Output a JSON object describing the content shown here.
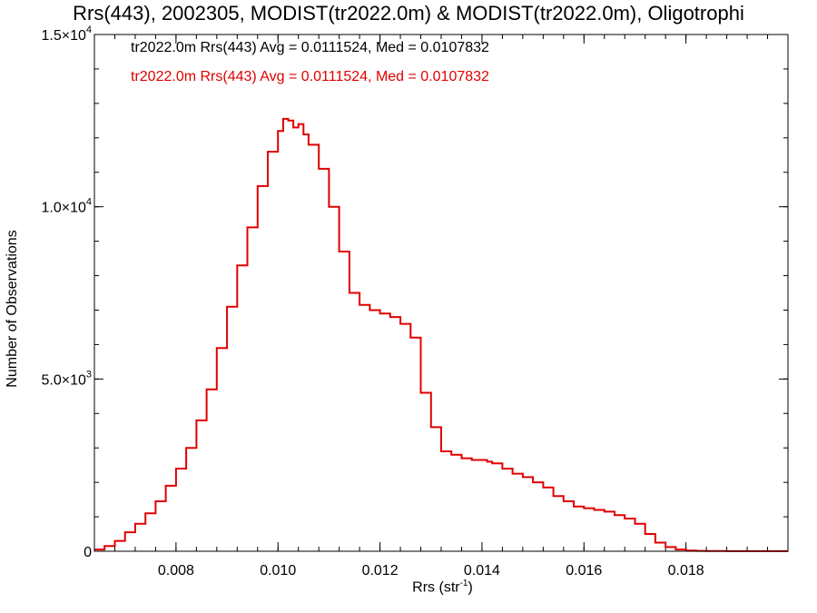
{
  "chart_data": {
    "type": "line",
    "title": "Rrs(443), 2002305, MODIST(tr2022.0m) & MODIST(tr2022.0m), Oligotrophi",
    "xlabel_main": "Rrs (str",
    "xlabel_sup": "-1",
    "xlabel_end": ")",
    "ylabel": "Number of Observations",
    "xlim": [
      0.0064,
      0.02
    ],
    "ylim": [
      0,
      15000
    ],
    "xticks": [
      {
        "value": 0.008,
        "label": "0.008"
      },
      {
        "value": 0.01,
        "label": "0.010"
      },
      {
        "value": 0.012,
        "label": "0.012"
      },
      {
        "value": 0.014,
        "label": "0.014"
      },
      {
        "value": 0.016,
        "label": "0.016"
      },
      {
        "value": 0.018,
        "label": "0.018"
      }
    ],
    "yticks": [
      {
        "value": 0,
        "label": "0"
      },
      {
        "value": 5000,
        "label": "5.0×10",
        "exp": "3"
      },
      {
        "value": 10000,
        "label": "1.0×10",
        "exp": "4"
      },
      {
        "value": 15000,
        "label": "1.5×10",
        "exp": "4"
      }
    ],
    "stats": [
      {
        "text": "tr2022.0m Rrs(443) Avg = 0.0111524, Med = 0.0107832",
        "color": "#000000"
      },
      {
        "text": "tr2022.0m Rrs(443) Avg = 0.0111524, Med = 0.0107832",
        "color": "#e00000"
      }
    ],
    "series": [
      {
        "color": "#e00000",
        "style": "step",
        "x": [
          0.0064,
          0.0066,
          0.0068,
          0.007,
          0.0072,
          0.0074,
          0.0076,
          0.0078,
          0.008,
          0.0082,
          0.0084,
          0.0086,
          0.0088,
          0.009,
          0.0092,
          0.0094,
          0.0096,
          0.0098,
          0.01,
          0.0101,
          0.0102,
          0.0103,
          0.0104,
          0.0105,
          0.0106,
          0.0108,
          0.011,
          0.0112,
          0.0114,
          0.0116,
          0.0118,
          0.012,
          0.0122,
          0.0124,
          0.0126,
          0.0128,
          0.013,
          0.0132,
          0.0134,
          0.0136,
          0.0138,
          0.014,
          0.0141,
          0.0142,
          0.0144,
          0.0146,
          0.0148,
          0.015,
          0.0152,
          0.0154,
          0.0156,
          0.0158,
          0.016,
          0.0162,
          0.0164,
          0.0166,
          0.0168,
          0.017,
          0.0172,
          0.0174,
          0.0176,
          0.0178,
          0.018,
          0.0182,
          0.0184,
          0.0186,
          0.0188,
          0.019,
          0.0192,
          0.0194,
          0.0196,
          0.0198,
          0.02
        ],
        "y": [
          50,
          150,
          300,
          550,
          800,
          1100,
          1450,
          1900,
          2400,
          3000,
          3800,
          4700,
          5900,
          7100,
          8300,
          9400,
          10600,
          11600,
          12200,
          12550,
          12500,
          12300,
          12400,
          12100,
          11800,
          11100,
          10000,
          8700,
          7500,
          7150,
          7000,
          6900,
          6800,
          6600,
          6200,
          4600,
          3600,
          2900,
          2800,
          2700,
          2650,
          2650,
          2600,
          2550,
          2400,
          2250,
          2150,
          2000,
          1850,
          1600,
          1450,
          1300,
          1250,
          1200,
          1150,
          1050,
          950,
          800,
          500,
          250,
          120,
          50,
          20,
          10,
          5,
          5,
          3,
          3,
          3,
          2,
          2,
          2,
          2
        ]
      }
    ]
  }
}
